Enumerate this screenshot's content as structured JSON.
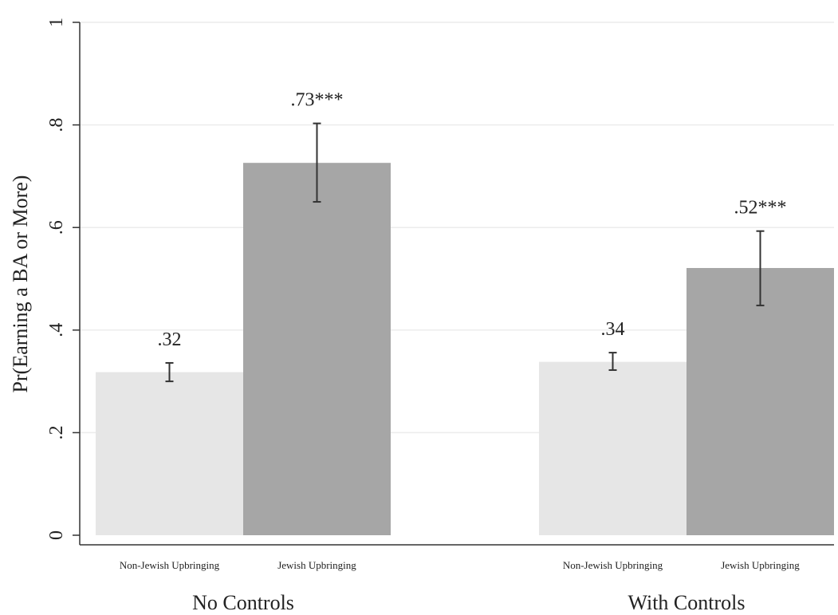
{
  "chart_data": {
    "type": "bar",
    "ylabel": "Pr(Earning a BA or More)",
    "ylim": [
      0,
      1
    ],
    "yticks": [
      {
        "value": 0,
        "label": "0"
      },
      {
        "value": 0.2,
        "label": ".2"
      },
      {
        "value": 0.4,
        "label": ".4"
      },
      {
        "value": 0.6,
        "label": ".6"
      },
      {
        "value": 0.8,
        "label": ".8"
      },
      {
        "value": 1,
        "label": "1"
      }
    ],
    "grid": true,
    "groups": [
      {
        "label": "No Controls",
        "bars": [
          {
            "category": "Non-Jewish Upbringing",
            "value": 0.318,
            "ci_low": 0.3,
            "ci_high": 0.336,
            "label": ".32",
            "color": "#e6e6e6"
          },
          {
            "category": "Jewish Upbringing",
            "value": 0.726,
            "ci_low": 0.65,
            "ci_high": 0.803,
            "label": ".73***",
            "color": "#a6a6a6"
          }
        ]
      },
      {
        "label": "With Controls",
        "bars": [
          {
            "category": "Non-Jewish Upbringing",
            "value": 0.338,
            "ci_low": 0.322,
            "ci_high": 0.356,
            "label": ".34",
            "color": "#e6e6e6"
          },
          {
            "category": "Jewish Upbringing",
            "value": 0.521,
            "ci_low": 0.448,
            "ci_high": 0.593,
            "label": ".52***",
            "color": "#a6a6a6"
          }
        ]
      }
    ]
  }
}
